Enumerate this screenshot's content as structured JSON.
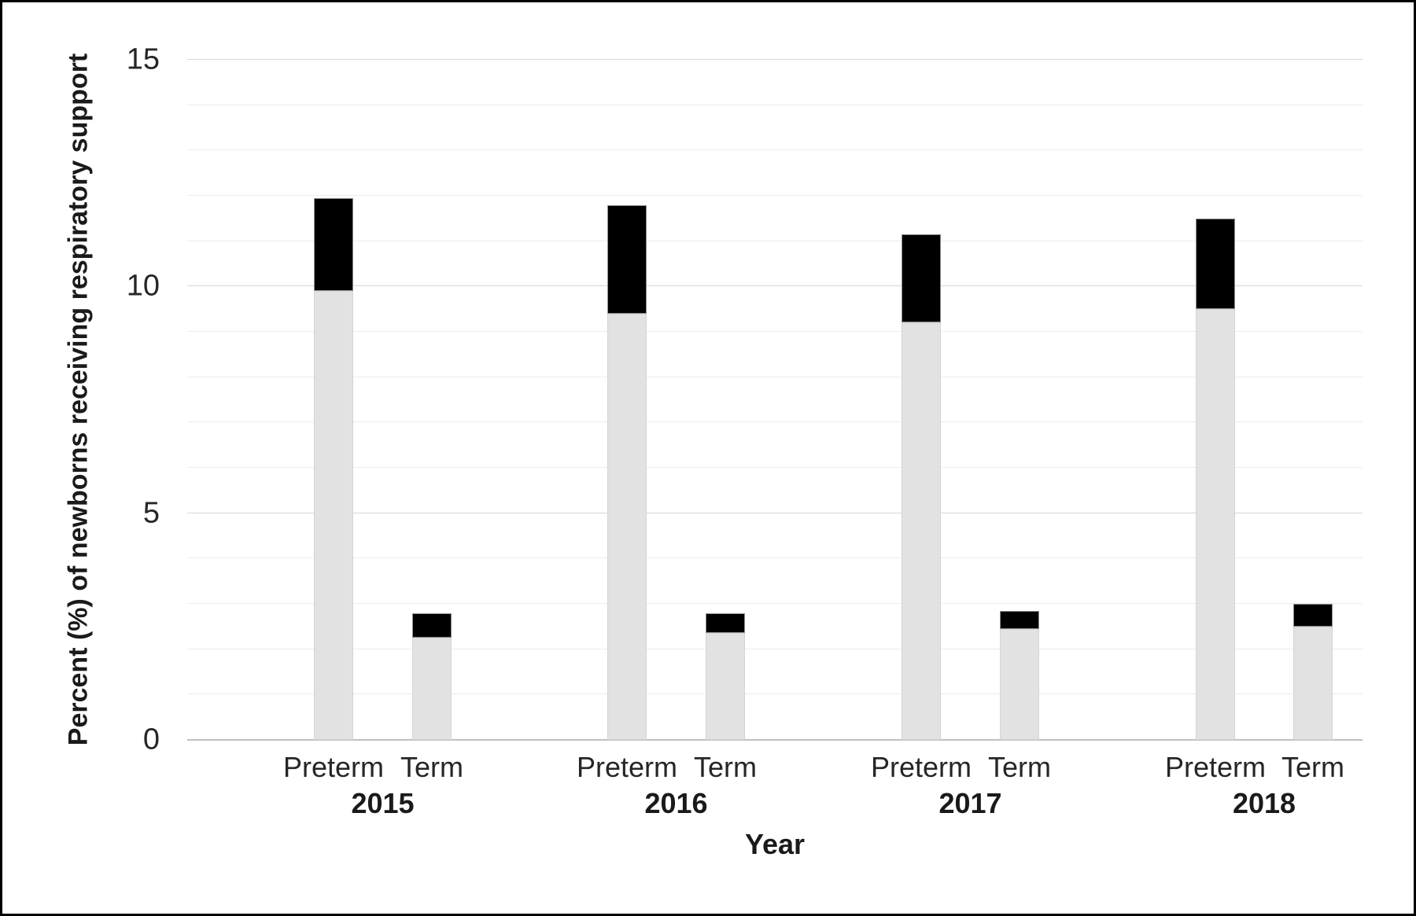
{
  "figure": {
    "y_axis_title": "Percent (%) of newborns receiving respiratory support",
    "x_axis_title": "Year"
  },
  "chart_data": {
    "type": "bar",
    "stacked": true,
    "title": "",
    "xlabel": "Year",
    "ylabel": "Percent (%) of newborns receiving respiratory support",
    "ylim": [
      0,
      15
    ],
    "y_ticks": [
      0,
      5,
      10,
      15
    ],
    "minor_gridline_step": 1,
    "grid": true,
    "legend": "none",
    "categories": [
      {
        "year": "2015",
        "label": "Preterm"
      },
      {
        "year": "2015",
        "label": "Term"
      },
      {
        "year": "2016",
        "label": "Preterm"
      },
      {
        "year": "2016",
        "label": "Term"
      },
      {
        "year": "2017",
        "label": "Preterm"
      },
      {
        "year": "2017",
        "label": "Term"
      },
      {
        "year": "2018",
        "label": "Preterm"
      },
      {
        "year": "2018",
        "label": "Term"
      }
    ],
    "series": [
      {
        "name": "lower-segment-gray",
        "color": "#e2e2e2",
        "values": [
          9.9,
          2.25,
          9.4,
          2.35,
          9.2,
          2.45,
          9.5,
          2.5
        ]
      },
      {
        "name": "upper-segment-black",
        "color": "#000000",
        "values": [
          2.05,
          0.55,
          2.4,
          0.45,
          1.95,
          0.4,
          2.0,
          0.5
        ]
      }
    ],
    "totals": [
      11.95,
      2.8,
      11.8,
      2.8,
      11.15,
      2.85,
      11.5,
      3.0
    ]
  },
  "colors": {
    "frame_border": "#000000",
    "minor_gridline": "#ececec",
    "major_gridline": "#d6d6d6",
    "axis_line": "#c0c0c0",
    "bar_gray": "#e2e2e2",
    "bar_black": "#000000",
    "text": "#262626"
  }
}
